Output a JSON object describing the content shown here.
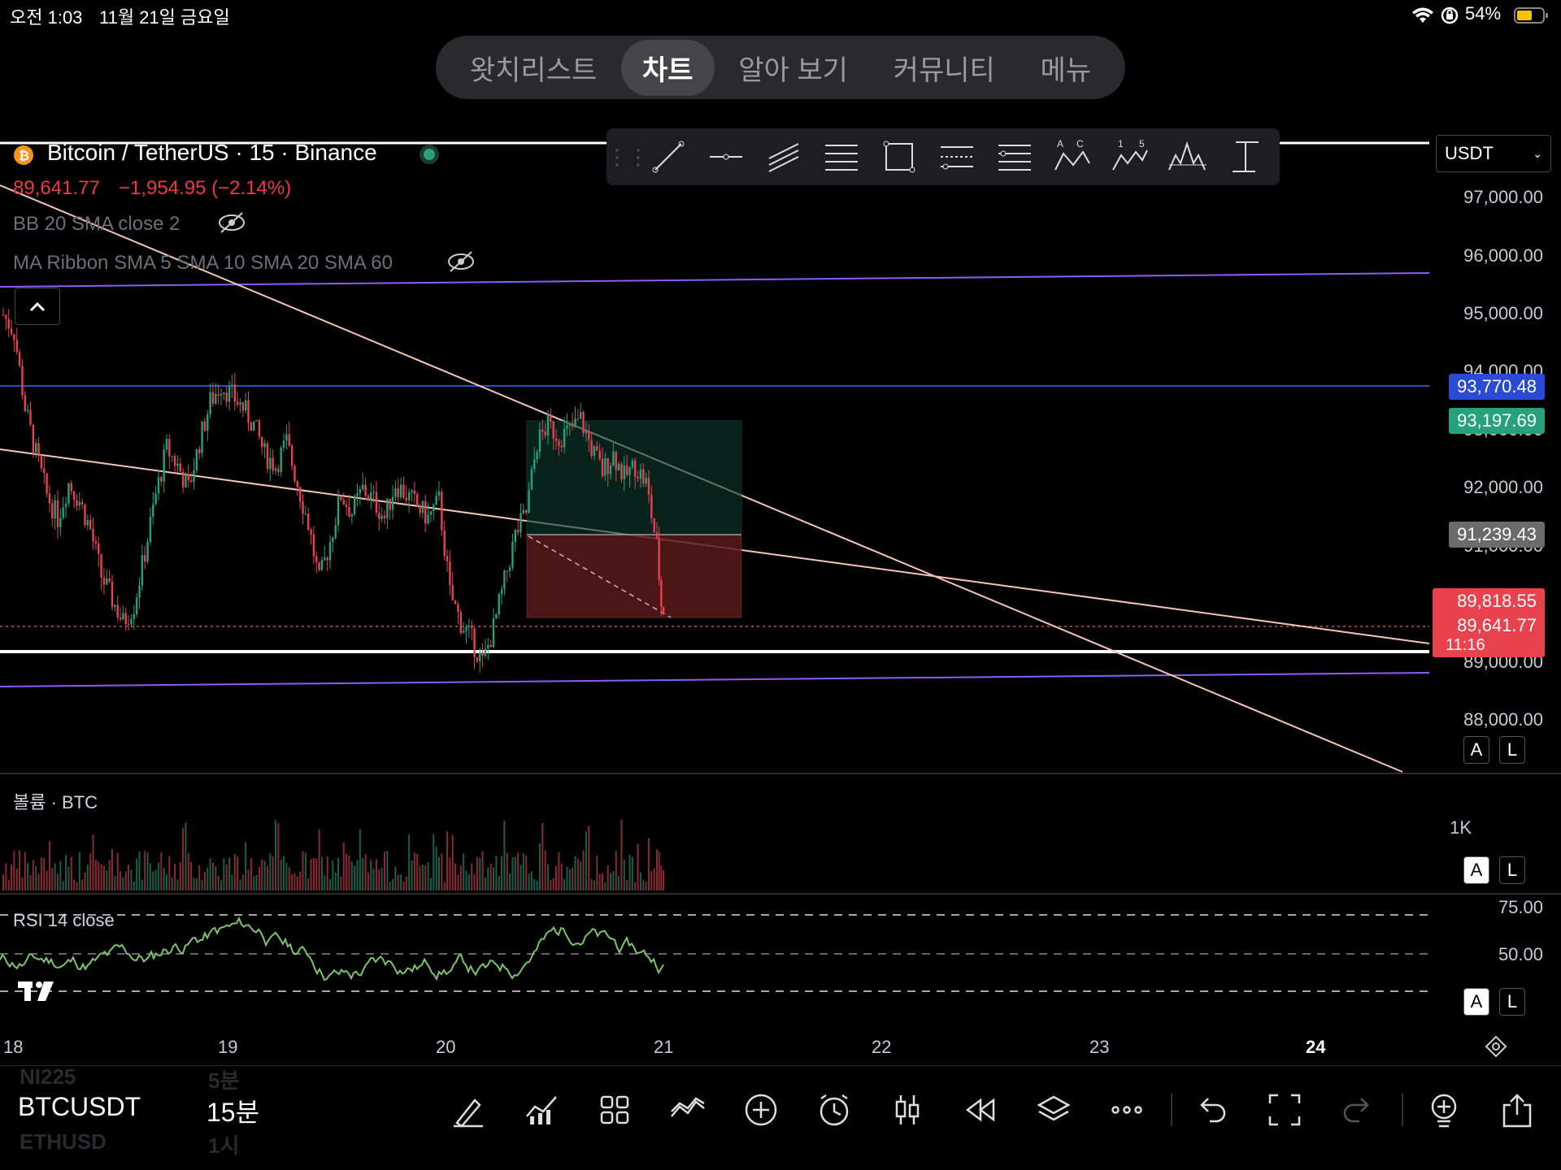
{
  "status_bar": {
    "time": "오전 1:03",
    "date": "11월 21일 금요일",
    "battery": "54%"
  },
  "nav": {
    "tabs": [
      {
        "label": "왓치리스트",
        "active": false
      },
      {
        "label": "차트",
        "active": true
      },
      {
        "label": "알아 보기",
        "active": false
      },
      {
        "label": "커뮤니티",
        "active": false
      },
      {
        "label": "메뉴",
        "active": false
      }
    ]
  },
  "drawing_toolbar": {
    "tools": [
      "trend-line-icon",
      "horizontal-ray-icon",
      "parallel-channel-icon",
      "pitchfork-icon",
      "rectangle-icon",
      "fib-retracement-icon",
      "fib-extension-icon",
      "abcd-pattern-icon",
      "elliott-wave-icon",
      "head-shoulders-icon",
      "measure-icon"
    ],
    "abcd_labels": [
      "A",
      "C"
    ],
    "wave_labels": [
      "1",
      "5"
    ]
  },
  "symbol_legend": {
    "title": "Bitcoin / TetherUS · 15 · Binance",
    "price": "89,641.77",
    "change": "−1,954.95 (−2.14%)"
  },
  "indicators": {
    "bb": "BB 20 SMA close 2",
    "ma_ribbon": "MA Ribbon SMA 5 SMA 10 SMA 20 SMA 60",
    "volume": "볼륨 · BTC",
    "rsi": "RSI 14 close"
  },
  "currency_select": "USDT",
  "price_axis": {
    "levels": [
      "97,000.00",
      "96,000.00",
      "95,000.00",
      "94,000.00",
      "93,000.00",
      "92,000.00",
      "91,000.00",
      "89,000.00",
      "88,000.00"
    ],
    "tags": {
      "blue": "93,770.48",
      "green": "93,197.69",
      "gray": "91,239.43",
      "red_top": "89,818.55",
      "red_price": "89,641.77",
      "countdown": "11:16"
    },
    "colors": {
      "blue": "#2b4bd6",
      "green": "#26a17b",
      "gray": "#6b6b6b",
      "red": "#e8424f"
    }
  },
  "volume_axis": {
    "label": "1K"
  },
  "rsi_axis": {
    "levels": [
      "75.00",
      "50.00"
    ]
  },
  "scale_buttons": {
    "auto": "A",
    "log": "L"
  },
  "time_axis": {
    "labels": [
      "18",
      "19",
      "20",
      "21",
      "22",
      "23",
      "24"
    ]
  },
  "chart_data": {
    "type": "candlestick",
    "symbol": "BTCUSDT",
    "interval": "15",
    "x": [
      "18",
      "19",
      "20",
      "21"
    ],
    "ylim": [
      87900,
      97300
    ],
    "last_price": 89641.77,
    "path_points": [
      [
        0,
        94800
      ],
      [
        0.05,
        94500
      ],
      [
        0.1,
        93200
      ],
      [
        0.15,
        92400
      ],
      [
        0.2,
        91700
      ],
      [
        0.25,
        91300
      ],
      [
        0.3,
        91900
      ],
      [
        0.35,
        91600
      ],
      [
        0.4,
        91100
      ],
      [
        0.45,
        90300
      ],
      [
        0.5,
        89900
      ],
      [
        0.55,
        89500
      ],
      [
        0.6,
        89800
      ],
      [
        0.65,
        90700
      ],
      [
        0.7,
        91700
      ],
      [
        0.75,
        92500
      ],
      [
        0.8,
        92200
      ],
      [
        0.85,
        91800
      ],
      [
        0.9,
        92600
      ],
      [
        0.95,
        93300
      ],
      [
        1.0,
        93600
      ],
      [
        1.05,
        93400
      ],
      [
        1.1,
        93200
      ],
      [
        1.15,
        92900
      ],
      [
        1.2,
        92400
      ],
      [
        1.25,
        92200
      ],
      [
        1.3,
        92600
      ],
      [
        1.35,
        91900
      ],
      [
        1.4,
        91200
      ],
      [
        1.45,
        90200
      ],
      [
        1.5,
        90900
      ],
      [
        1.55,
        91700
      ],
      [
        1.6,
        91400
      ],
      [
        1.65,
        91800
      ],
      [
        1.7,
        91600
      ],
      [
        1.75,
        91300
      ],
      [
        1.8,
        91900
      ],
      [
        1.85,
        91700
      ],
      [
        1.9,
        91500
      ],
      [
        1.95,
        91300
      ],
      [
        2.0,
        91600
      ],
      [
        2.05,
        90000
      ],
      [
        2.1,
        89500
      ],
      [
        2.15,
        89200
      ],
      [
        2.2,
        88800
      ],
      [
        2.25,
        89400
      ],
      [
        2.3,
        90200
      ],
      [
        2.35,
        91000
      ],
      [
        2.4,
        91400
      ],
      [
        2.45,
        92600
      ],
      [
        2.5,
        92900
      ],
      [
        2.55,
        92700
      ],
      [
        2.6,
        92800
      ],
      [
        2.65,
        93000
      ],
      [
        2.7,
        92500
      ],
      [
        2.75,
        92100
      ],
      [
        2.8,
        92400
      ],
      [
        2.85,
        92000
      ],
      [
        2.9,
        92200
      ],
      [
        2.95,
        91900
      ],
      [
        3.0,
        90800
      ],
      [
        3.02,
        89800
      ],
      [
        3.04,
        89642
      ]
    ],
    "rsi_levels": [
      75,
      50,
      35
    ],
    "volume_unit": "BTC"
  },
  "bottom_bar": {
    "symbol": "BTCUSDT",
    "interval": "15분",
    "ghost_above": {
      "symbol": "NI225",
      "interval": "5분"
    },
    "ghost_below": {
      "symbol": "ETHUSD",
      "interval": "1시"
    },
    "icons": [
      "brush-icon",
      "chart-type-icon",
      "layout-grid-icon",
      "indicators-icon",
      "add-icon",
      "alert-clock-icon",
      "bar-pattern-icon",
      "replay-icon",
      "layers-icon",
      "more-icon",
      "undo-icon",
      "fullscreen-icon",
      "redo-icon",
      "object-tree-icon",
      "share-icon"
    ]
  }
}
